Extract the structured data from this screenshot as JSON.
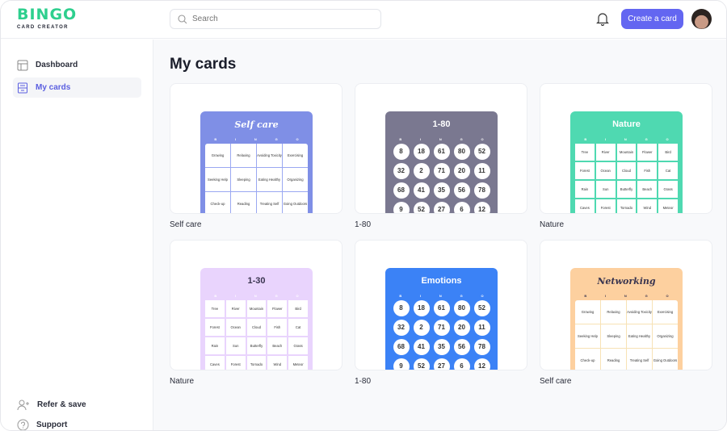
{
  "header": {
    "logo_main": "BINGO",
    "logo_sub": "CARD CREATOR",
    "search_placeholder": "Search",
    "create_button": "Create a card"
  },
  "sidebar": {
    "items": [
      {
        "label": "Dashboard",
        "icon": "layout-icon",
        "active": false
      },
      {
        "label": "My cards",
        "icon": "archive-icon",
        "active": true
      }
    ],
    "bottom": [
      {
        "label": "Refer & save",
        "icon": "user-plus-icon"
      },
      {
        "label": "Support",
        "icon": "help-circle-icon"
      }
    ]
  },
  "main": {
    "title": "My cards",
    "cards": [
      {
        "label": "Self care",
        "title": "Self care",
        "bg": "#7f8fe6",
        "title_color": "#ffffff",
        "line": "#9aa8f2",
        "letter_color": "#ffffff",
        "style": "script",
        "kind": "c4",
        "cells": [
          "Growing",
          "Relaxing",
          "Avoiding Toxicity",
          "Exercising",
          "Seeking Help",
          "Sleeping",
          "Eating Healthy",
          "Organizing",
          "Check-up",
          "Reading",
          "Treating Self",
          "Going Outdoors"
        ]
      },
      {
        "label": "1-80",
        "title": "1-80",
        "bg": "#7a7890",
        "title_color": "#ffffff",
        "letter_color": "#ffffff",
        "style": "plain",
        "kind": "num",
        "cells": [
          "8",
          "18",
          "61",
          "80",
          "52",
          "32",
          "2",
          "71",
          "20",
          "11",
          "68",
          "41",
          "35",
          "56",
          "78",
          "9",
          "52",
          "27",
          "6",
          "12"
        ]
      },
      {
        "label": "Nature",
        "title": "Nature",
        "bg": "#4fd9b1",
        "title_color": "#ffffff",
        "letter_color": "#ffffff",
        "style": "plain",
        "kind": "c5",
        "cells": [
          "Tree",
          "River",
          "Mountain",
          "Flower",
          "Bird",
          "Forest",
          "Ocean",
          "Cloud",
          "Fish",
          "Cat",
          "Rain",
          "Sun",
          "Butterfly",
          "Beach",
          "Grass",
          "Caves",
          "Forest",
          "Tornado",
          "Wind",
          "Meteor"
        ]
      },
      {
        "label": "Nature",
        "title": "1-30",
        "bg": "#e9d4fd",
        "title_color": "#3a3550",
        "letter_color": "#ffffff",
        "style": "plain",
        "kind": "c5",
        "cells": [
          "Tree",
          "River",
          "Mountain",
          "Flower",
          "Bird",
          "Forest",
          "Ocean",
          "Cloud",
          "Fish",
          "Cat",
          "Rain",
          "Sun",
          "Butterfly",
          "Beach",
          "Grass",
          "Caves",
          "Forest",
          "Tornado",
          "Wind",
          "Meteor"
        ]
      },
      {
        "label": "1-80",
        "title": "Emotions",
        "bg": "#3b82f6",
        "title_color": "#ffffff",
        "letter_color": "#ffffff",
        "style": "plain",
        "kind": "num",
        "cells": [
          "8",
          "18",
          "61",
          "80",
          "52",
          "32",
          "2",
          "71",
          "20",
          "11",
          "68",
          "41",
          "35",
          "56",
          "78",
          "9",
          "52",
          "27",
          "6",
          "12"
        ]
      },
      {
        "label": "Self care",
        "title": "Networking",
        "bg": "#fdd09f",
        "title_color": "#3a3550",
        "line": "#f7e2b5",
        "letter_color": "#3a3550",
        "style": "script",
        "kind": "c4",
        "cells": [
          "Growing",
          "Relaxing",
          "Avoiding Toxicity",
          "Exercising",
          "Seeking Help",
          "Sleeping",
          "Eating Healthy",
          "Organizing",
          "Check-up",
          "Reading",
          "Treating Self",
          "Going Outdoors"
        ]
      }
    ],
    "letters": [
      "B",
      "I",
      "N",
      "G",
      "O"
    ]
  }
}
